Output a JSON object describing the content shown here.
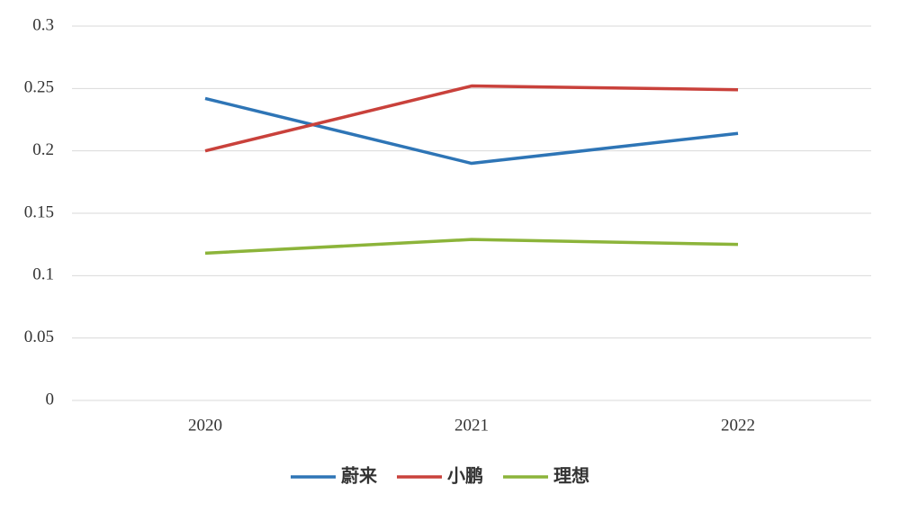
{
  "chart_data": {
    "type": "line",
    "categories": [
      "2020",
      "2021",
      "2022"
    ],
    "series": [
      {
        "name": "蔚来",
        "color": "#2e75b6",
        "values": [
          0.242,
          0.19,
          0.214
        ]
      },
      {
        "name": "小鹏",
        "color": "#c9413b",
        "values": [
          0.2,
          0.252,
          0.249
        ]
      },
      {
        "name": "理想",
        "color": "#8cb43a",
        "values": [
          0.118,
          0.129,
          0.125
        ]
      }
    ],
    "ylim": [
      0,
      0.3
    ],
    "yticks": [
      0,
      0.05,
      0.1,
      0.15,
      0.2,
      0.25,
      0.3
    ],
    "grid": true,
    "legend": "bottom"
  }
}
